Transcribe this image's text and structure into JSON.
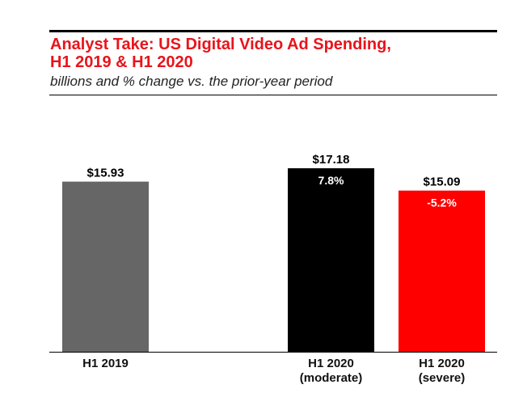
{
  "chart_data": {
    "type": "bar",
    "title": "Analyst Take: US Digital Video Ad Spending, H1 2019 & H1 2020",
    "title_lines": [
      "Analyst Take: US Digital Video Ad Spending,",
      "H1 2019 & H1 2020"
    ],
    "subtitle": "billions and % change vs. the prior-year period",
    "categories": [
      "H1 2019",
      "H1 2020 (moderate)",
      "H1 2020 (severe)"
    ],
    "category_lines": [
      [
        "H1 2019"
      ],
      [
        "H1 2020",
        "(moderate)"
      ],
      [
        "H1 2020",
        "(severe)"
      ]
    ],
    "values": [
      15.93,
      17.18,
      15.09
    ],
    "value_labels": [
      "$15.93",
      "$17.18",
      "$15.09"
    ],
    "change_labels": [
      "",
      "7.8%",
      "-5.2%"
    ],
    "colors": [
      "#666666",
      "#000000",
      "#ff0000"
    ],
    "ylim": [
      0,
      24
    ],
    "grid": false,
    "legend": "none"
  }
}
